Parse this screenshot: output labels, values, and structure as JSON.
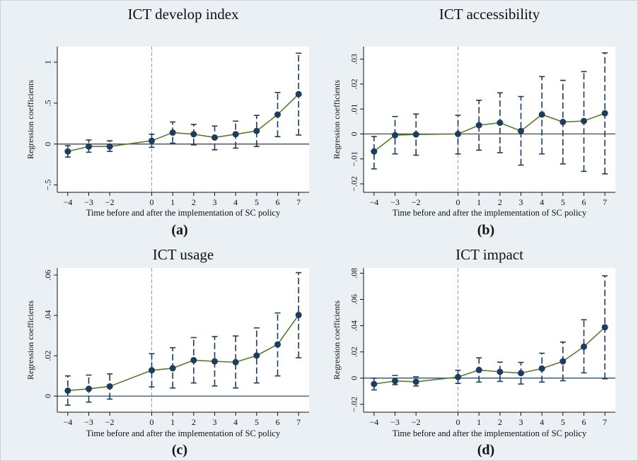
{
  "chart_data": [
    {
      "type": "line",
      "title": "ICT develop index",
      "panel_label": "(a)",
      "xlabel": "Time before and after the implementation of SC policy",
      "ylabel": "Regression coefficients",
      "x": [
        -4,
        -3,
        -2,
        0,
        1,
        2,
        3,
        4,
        5,
        6,
        7
      ],
      "values": [
        -0.09,
        -0.03,
        -0.03,
        0.04,
        0.14,
        0.12,
        0.08,
        0.12,
        0.16,
        0.36,
        0.61
      ],
      "lower": [
        -0.16,
        -0.1,
        -0.09,
        -0.04,
        0.01,
        -0.01,
        -0.07,
        -0.05,
        -0.03,
        0.09,
        0.11
      ],
      "upper": [
        -0.02,
        0.05,
        0.04,
        0.12,
        0.27,
        0.24,
        0.22,
        0.28,
        0.35,
        0.63,
        1.11
      ],
      "xlim": [
        -4.5,
        7.5
      ],
      "xticks": [
        {
          "value": -4,
          "label": "−4"
        },
        {
          "value": -3,
          "label": "−3"
        },
        {
          "value": -2,
          "label": "−2"
        },
        0,
        1,
        2,
        3,
        4,
        5,
        6,
        7
      ],
      "ylim": [
        -0.59,
        1.19
      ],
      "yticks": [
        {
          "value": -0.5,
          "label": "−.5"
        },
        0,
        {
          "value": 0.5,
          "label": ".5"
        },
        1
      ],
      "vline": 0,
      "hline": 0,
      "line_color": "#5b7a2e",
      "marker_color": "#1d3d5e"
    },
    {
      "type": "line",
      "title": "ICT accessibility",
      "panel_label": "(b)",
      "xlabel": "Time before and after the implementation of SC policy",
      "ylabel": "Regression coefficients",
      "x": [
        -4,
        -3,
        -2,
        0,
        1,
        2,
        3,
        4,
        5,
        6,
        7
      ],
      "values": [
        -0.007,
        -0.0005,
        -0.0002,
        0,
        0.0035,
        0.0045,
        0.0012,
        0.0078,
        0.0048,
        0.0052,
        0.0083
      ],
      "lower": [
        -0.014,
        -0.008,
        -0.0085,
        -0.008,
        -0.0065,
        -0.0075,
        -0.0125,
        -0.008,
        -0.012,
        -0.015,
        -0.016
      ],
      "upper": [
        -0.001,
        0.007,
        0.008,
        0.0075,
        0.0135,
        0.0165,
        0.015,
        0.023,
        0.0215,
        0.025,
        0.0325
      ],
      "xlim": [
        -4.5,
        7.5
      ],
      "xticks": [
        {
          "value": -4,
          "label": "−4"
        },
        {
          "value": -3,
          "label": "−3"
        },
        {
          "value": -2,
          "label": "−2"
        },
        0,
        1,
        2,
        3,
        4,
        5,
        6,
        7
      ],
      "ylim": [
        -0.0234,
        0.035
      ],
      "yticks": [
        {
          "value": -0.02,
          "label": "−.02"
        },
        {
          "value": -0.01,
          "label": "−.01"
        },
        0,
        {
          "value": 0.01,
          "label": ".01"
        },
        {
          "value": 0.02,
          "label": ".02"
        },
        {
          "value": 0.03,
          "label": ".03"
        }
      ],
      "vline": 0,
      "hline": 0,
      "line_color": "#5b7a2e",
      "marker_color": "#1d3d5e"
    },
    {
      "type": "line",
      "title": "ICT usage",
      "panel_label": "(c)",
      "xlabel": "Time before and after the implementation of SC policy",
      "ylabel": "Regression coefficients",
      "x": [
        -4,
        -3,
        -2,
        0,
        1,
        2,
        3,
        4,
        5,
        6,
        7
      ],
      "values": [
        0.0027,
        0.0036,
        0.0048,
        0.0128,
        0.0138,
        0.0178,
        0.0172,
        0.0168,
        0.0201,
        0.0256,
        0.0402
      ],
      "lower": [
        -0.0045,
        -0.003,
        -0.0015,
        0.0045,
        0.004,
        0.0065,
        0.005,
        0.004,
        0.0065,
        0.01,
        0.019
      ],
      "upper": [
        0.01,
        0.0104,
        0.011,
        0.021,
        0.024,
        0.029,
        0.0295,
        0.0298,
        0.0338,
        0.0412,
        0.0612
      ],
      "xlim": [
        -4.5,
        7.5
      ],
      "xticks": [
        {
          "value": -4,
          "label": "−4"
        },
        {
          "value": -3,
          "label": "−3"
        },
        {
          "value": -2,
          "label": "−2"
        },
        0,
        1,
        2,
        3,
        4,
        5,
        6,
        7
      ],
      "ylim": [
        -0.008,
        0.0635
      ],
      "yticks": [
        0,
        {
          "value": 0.02,
          "label": ".02"
        },
        {
          "value": 0.04,
          "label": ".04"
        },
        {
          "value": 0.06,
          "label": ".06"
        }
      ],
      "vline": 0,
      "hline": 0,
      "line_color": "#5b7a2e",
      "marker_color": "#1d3d5e"
    },
    {
      "type": "line",
      "title": "ICT impact",
      "panel_label": "(d)",
      "xlabel": "Time before and after the implementation of SC policy",
      "ylabel": "Regression coefficients",
      "x": [
        -4,
        -3,
        -2,
        0,
        1,
        2,
        3,
        4,
        5,
        6,
        7
      ],
      "values": [
        -0.0045,
        -0.0022,
        -0.0028,
        0.0008,
        0.0062,
        0.0048,
        0.0038,
        0.0073,
        0.0128,
        0.024,
        0.0388
      ],
      "lower": [
        -0.009,
        -0.005,
        -0.006,
        -0.004,
        -0.003,
        -0.0025,
        -0.0045,
        -0.003,
        -0.002,
        0.004,
        -0.0005
      ],
      "upper": [
        0,
        0.002,
        0.001,
        0.006,
        0.0155,
        0.0122,
        0.012,
        0.019,
        0.0275,
        0.0445,
        0.078
      ],
      "xlim": [
        -4.5,
        7.5
      ],
      "xticks": [
        {
          "value": -4,
          "label": "−4"
        },
        {
          "value": -3,
          "label": "−3"
        },
        {
          "value": -2,
          "label": "−2"
        },
        0,
        1,
        2,
        3,
        4,
        5,
        6,
        7
      ],
      "ylim": [
        -0.026,
        0.084
      ],
      "yticks": [
        {
          "value": -0.02,
          "label": "−.02"
        },
        0,
        {
          "value": 0.02,
          "label": ".02"
        },
        {
          "value": 0.04,
          "label": ".04"
        },
        {
          "value": 0.06,
          "label": ".06"
        },
        {
          "value": 0.08,
          "label": ".08"
        }
      ],
      "vline": 0,
      "hline": 0,
      "line_color": "#5b7a2e",
      "marker_color": "#1d3d5e"
    }
  ]
}
